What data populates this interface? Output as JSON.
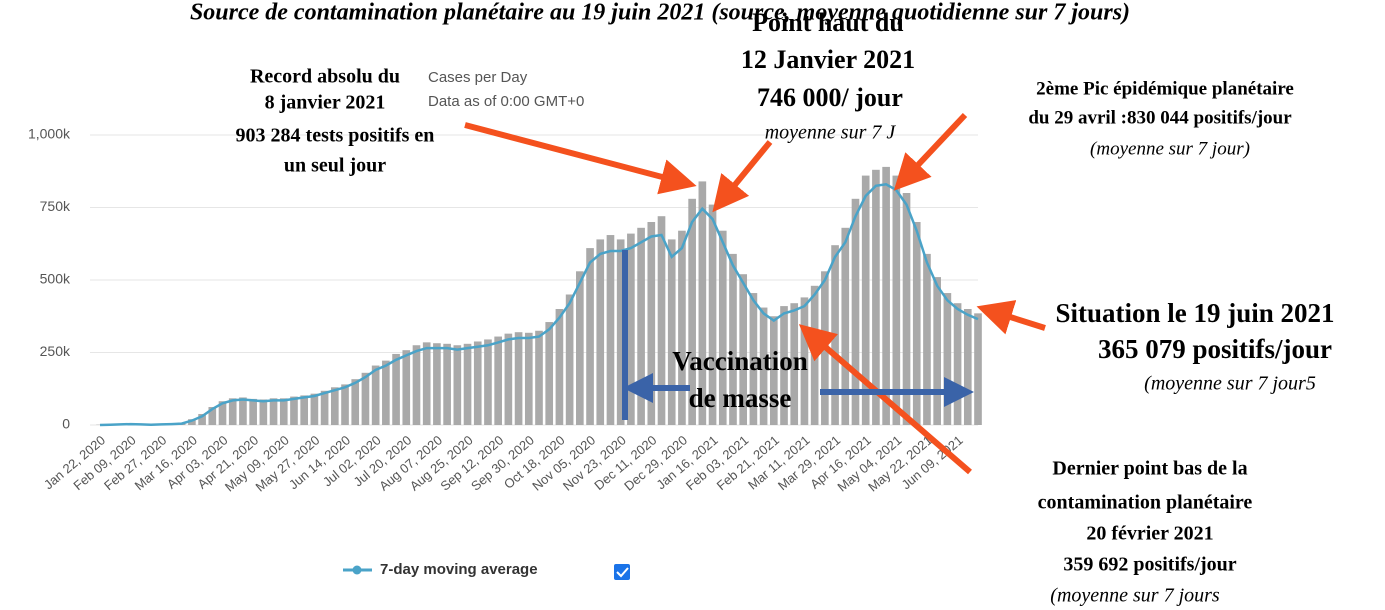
{
  "chart_data": {
    "type": "bar_line",
    "title": "Source de contamination planétaire au 19 juin 2021 (source, moyenne quotidienne sur 7 jours)",
    "subtitle": "Cases per Day",
    "note": "Data as of 0:00 GMT+0",
    "categories": [
      "Jan 22, 2020",
      null,
      null,
      "Feb 09, 2020",
      null,
      null,
      "Feb 27, 2020",
      null,
      null,
      "Mar 16, 2020",
      null,
      null,
      "Apr 03, 2020",
      null,
      null,
      "Apr 21, 2020",
      null,
      null,
      "May 09, 2020",
      null,
      null,
      "May 27, 2020",
      null,
      null,
      "Jun 14, 2020",
      null,
      null,
      "Jul 02, 2020",
      null,
      null,
      "Jul 20, 2020",
      null,
      null,
      "Aug 07, 2020",
      null,
      null,
      "Aug 25, 2020",
      null,
      null,
      "Sep 12, 2020",
      null,
      null,
      "Sep 30, 2020",
      null,
      null,
      "Oct 18, 2020",
      null,
      null,
      "Nov 05, 2020",
      null,
      null,
      "Nov 23, 2020",
      null,
      null,
      "Dec 11, 2020",
      null,
      null,
      "Dec 29, 2020",
      null,
      null,
      "Jan 16, 2021",
      null,
      null,
      "Feb 03, 2021",
      null,
      null,
      "Feb 21, 2021",
      null,
      null,
      "Mar 11, 2021",
      null,
      null,
      "Mar 29, 2021",
      null,
      null,
      "Apr 16, 2021",
      null,
      null,
      "May 04, 2021",
      null,
      null,
      "May 22, 2021",
      null,
      null,
      "Jun 09, 2021",
      null,
      null
    ],
    "series": [
      {
        "name": "Cases",
        "color": "#a9a9a9",
        "kind": "bar",
        "values": [
          1,
          2,
          3,
          3,
          2,
          2,
          3,
          4,
          8,
          20,
          38,
          62,
          82,
          92,
          95,
          90,
          88,
          92,
          92,
          98,
          102,
          108,
          118,
          130,
          140,
          158,
          180,
          205,
          222,
          245,
          258,
          275,
          285,
          282,
          280,
          275,
          280,
          288,
          295,
          305,
          315,
          320,
          318,
          325,
          355,
          400,
          450,
          530,
          610,
          640,
          655,
          640,
          660,
          680,
          700,
          720,
          640,
          670,
          780,
          840,
          760,
          670,
          590,
          520,
          455,
          405,
          375,
          410,
          420,
          440,
          480,
          530,
          620,
          680,
          780,
          860,
          880,
          890,
          860,
          800,
          700,
          590,
          510,
          455,
          420,
          400,
          385
        ]
      },
      {
        "name": "7-day moving average",
        "color": "#4aa3c8",
        "kind": "line",
        "values": [
          0,
          1,
          2,
          3,
          2,
          1,
          2,
          3,
          5,
          15,
          30,
          55,
          75,
          85,
          88,
          85,
          82,
          85,
          85,
          90,
          95,
          100,
          110,
          120,
          130,
          145,
          165,
          190,
          205,
          225,
          240,
          255,
          265,
          265,
          265,
          260,
          265,
          270,
          275,
          285,
          295,
          300,
          300,
          305,
          330,
          370,
          420,
          490,
          560,
          590,
          600,
          600,
          610,
          630,
          650,
          655,
          580,
          610,
          700,
          746,
          710,
          630,
          550,
          490,
          430,
          385,
          360,
          385,
          395,
          410,
          450,
          500,
          580,
          630,
          720,
          790,
          825,
          830,
          810,
          760,
          670,
          560,
          480,
          430,
          400,
          380,
          365
        ]
      }
    ],
    "ylim": [
      0,
      1000
    ],
    "yticks": [
      0,
      {
        "value": 250,
        "label": "250k"
      },
      {
        "value": 500,
        "label": "500k"
      },
      {
        "value": 750,
        "label": "750k"
      },
      {
        "value": 1000,
        "label": "1,000k"
      }
    ],
    "grid": true,
    "annotations": [
      "Record absolu du",
      "8 janvier 2021",
      "903 284 tests positifs en",
      "un seul jour",
      "Point haut du",
      "12 Janvier 2021",
      "746 000/ jour",
      "moyenne sur 7 J",
      "2ème Pic épidémique planétaire",
      "du 29 avril :830 044 positifs/jour",
      "(moyenne sur 7 jour)",
      "Situation le 19 juin 2021",
      "365 079 positifs/jour",
      "(moyenne sur 7 jour5",
      "Vaccination",
      "de masse",
      "Dernier point bas de la",
      "contamination planétaire",
      "20 février 2021",
      "359 692 positifs/jour",
      "(moyenne sur 7 jours"
    ]
  }
}
